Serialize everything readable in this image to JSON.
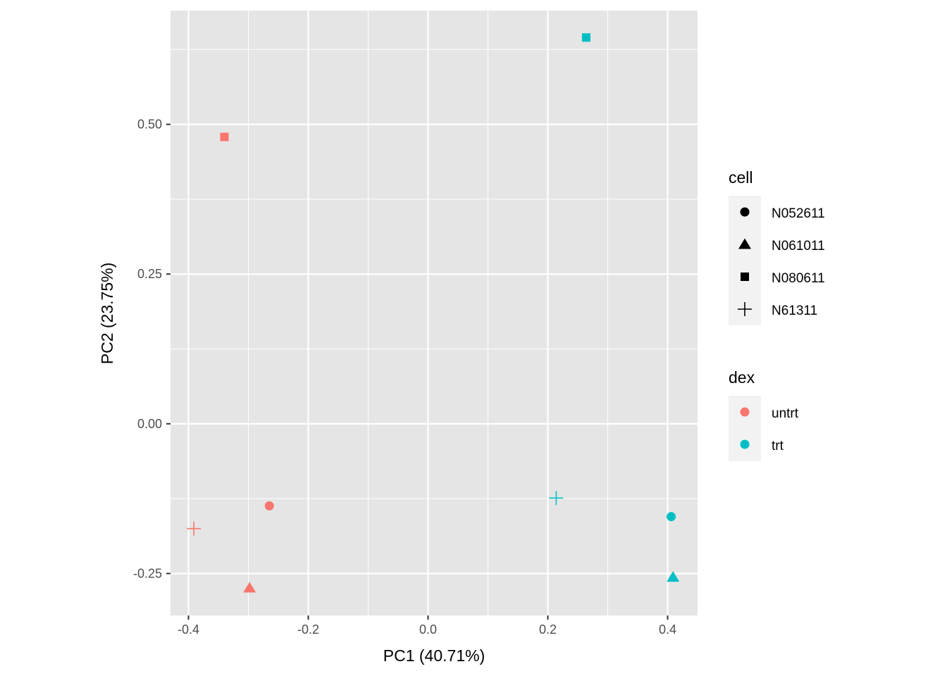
{
  "chart_data": {
    "type": "scatter",
    "title": "",
    "xlabel": "PC1 (40.71%)",
    "ylabel": "PC2 (23.75%)",
    "xlim": [
      -0.43,
      0.45
    ],
    "ylim": [
      -0.32,
      0.69
    ],
    "x_ticks": [
      {
        "value": -0.4,
        "label": "-0.4"
      },
      {
        "value": -0.2,
        "label": "-0.2"
      },
      {
        "value": 0.0,
        "label": "0.0"
      },
      {
        "value": 0.2,
        "label": "0.2"
      },
      {
        "value": 0.4,
        "label": "0.4"
      }
    ],
    "y_ticks": [
      {
        "value": -0.25,
        "label": "-0.25"
      },
      {
        "value": 0.0,
        "label": "0.00"
      },
      {
        "value": 0.25,
        "label": "0.25"
      },
      {
        "value": 0.5,
        "label": "0.50"
      }
    ],
    "grid": true,
    "panel_background": "#e5e5e5",
    "grid_color": "#ffffff",
    "points": [
      {
        "x": -0.265,
        "y": -0.137,
        "cell": "N052611",
        "dex": "untrt"
      },
      {
        "x": -0.298,
        "y": -0.274,
        "cell": "N061011",
        "dex": "untrt"
      },
      {
        "x": -0.34,
        "y": 0.479,
        "cell": "N080611",
        "dex": "untrt"
      },
      {
        "x": -0.391,
        "y": -0.175,
        "cell": "N61311",
        "dex": "untrt"
      },
      {
        "x": 0.406,
        "y": -0.155,
        "cell": "N052611",
        "dex": "trt"
      },
      {
        "x": 0.409,
        "y": -0.256,
        "cell": "N061011",
        "dex": "trt"
      },
      {
        "x": 0.264,
        "y": 0.645,
        "cell": "N080611",
        "dex": "trt"
      },
      {
        "x": 0.214,
        "y": -0.124,
        "cell": "N61311",
        "dex": "trt"
      }
    ],
    "legend_position": "right",
    "legends": [
      {
        "title": "cell",
        "entries": [
          {
            "label": "N052611",
            "shape": "circle"
          },
          {
            "label": "N061011",
            "shape": "triangle"
          },
          {
            "label": "N080611",
            "shape": "square"
          },
          {
            "label": "N61311",
            "shape": "plus"
          }
        ]
      },
      {
        "title": "dex",
        "entries": [
          {
            "label": "untrt",
            "color": "#f8766d"
          },
          {
            "label": "trt",
            "color": "#00bfc4"
          }
        ]
      }
    ],
    "shape_map": {
      "N052611": "circle",
      "N061011": "triangle",
      "N080611": "square",
      "N61311": "plus"
    },
    "color_map": {
      "untrt": "#f8766d",
      "trt": "#00bfc4"
    }
  }
}
